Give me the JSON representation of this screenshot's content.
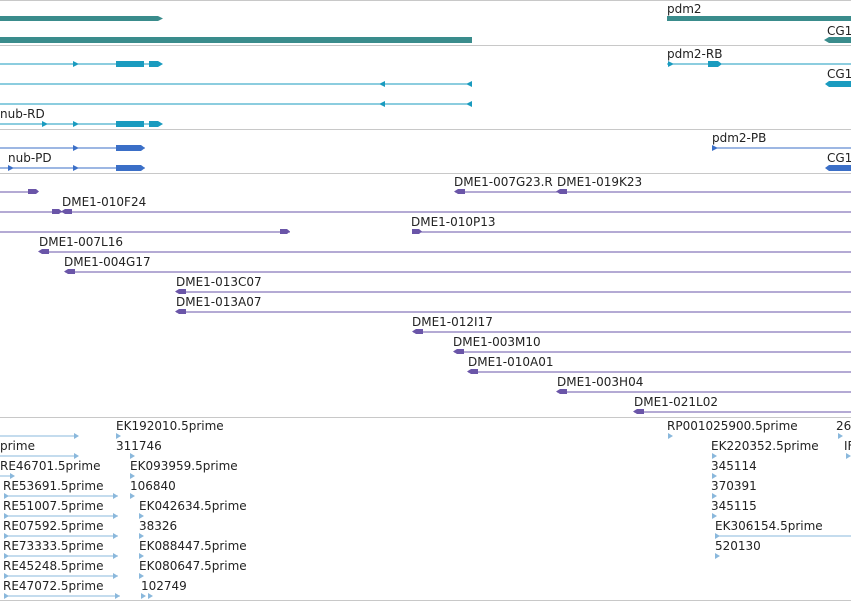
{
  "colors": {
    "gene": "#3a8c8c",
    "transcript": "#1a9bbf",
    "transcript_alt": "#3b6fc7",
    "clone": "#6a55a8",
    "est": "#8ab8dc",
    "separator": "#c8c8c8"
  },
  "tracks": {
    "genes": {
      "labels": [
        "pdm2",
        "CG1"
      ]
    },
    "transcripts_top": {
      "labels": [
        "pdm2-RB",
        "CG1"
      ]
    },
    "transcripts_mid": {
      "labels": [
        "nub-RD"
      ]
    },
    "transcripts_bottom": {
      "labels": [
        "nub-PD",
        "pdm2-PB",
        "CG1"
      ]
    },
    "clones": {
      "labels": [
        "DME1-007G23.R",
        "DME1-019K23",
        "DME1-010F24",
        "DME1-010P13",
        "DME1-007L16",
        "DME1-004G17",
        "DME1-013C07",
        "DME1-013A07",
        "DME1-012I17",
        "DME1-003M10",
        "DME1-010A01",
        "DME1-003H04",
        "DME1-021L02"
      ]
    },
    "ests": {
      "labels": [
        "prime",
        "RE46701.5prime",
        "RE53691.5prime",
        "RE51007.5prime",
        "RE07592.5prime",
        "RE73333.5prime",
        "RE45248.5prime",
        "RE47072.5prime",
        "EK192010.5prime",
        "311746",
        "EK093959.5prime",
        "106840",
        "EK042634.5prime",
        "38326",
        "EK088447.5prime",
        "EK080647.5prime",
        "102749",
        "RP001025900.5prime",
        "EK220352.5prime",
        "345114",
        "370391",
        "345115",
        "EK306154.5prime",
        "520130",
        "26",
        "IF"
      ]
    }
  }
}
